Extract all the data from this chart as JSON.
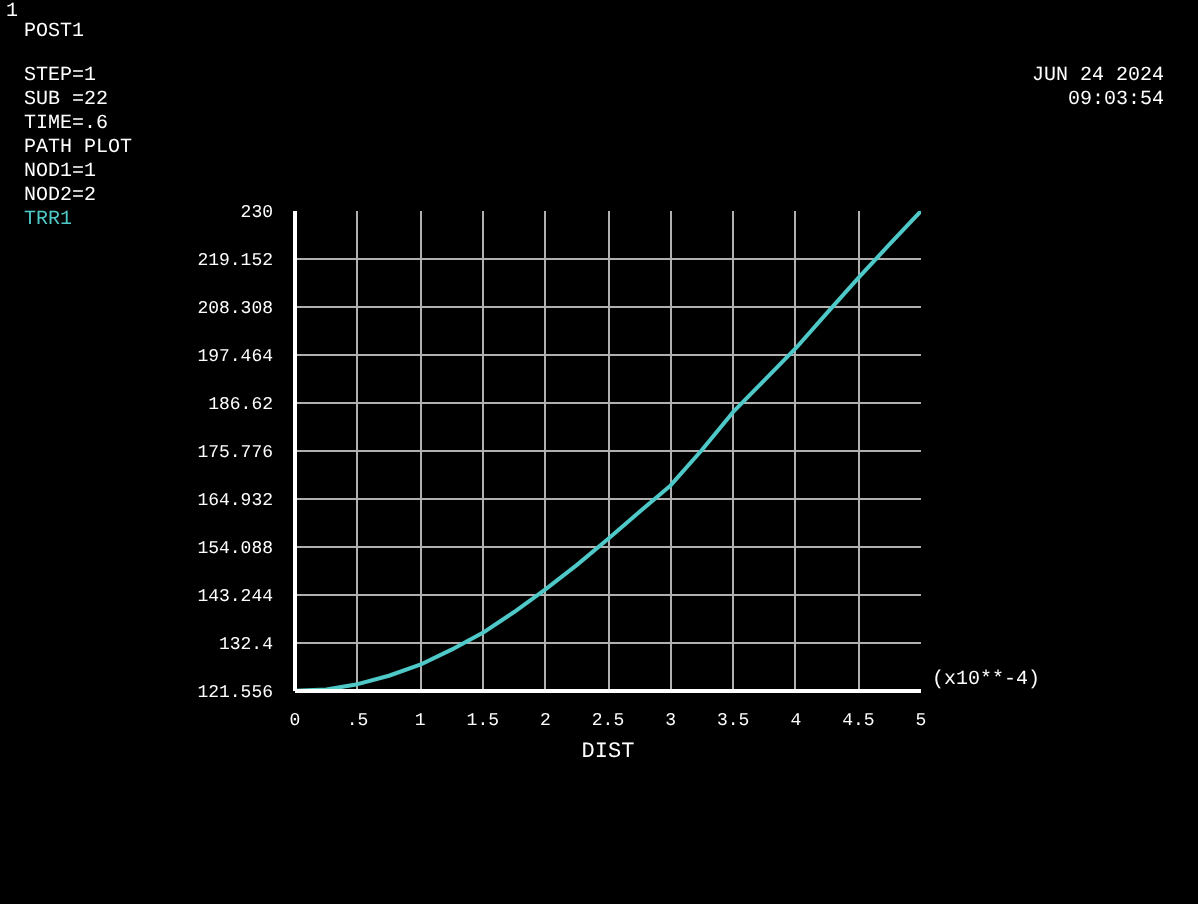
{
  "chart_data": {
    "type": "line",
    "xlabel": "DIST",
    "x": [
      0,
      0.25,
      0.5,
      0.75,
      1,
      1.25,
      1.5,
      1.75,
      2,
      2.25,
      2.5,
      2.75,
      3,
      3.25,
      3.5,
      3.75,
      4,
      4.25,
      4.5,
      4.75,
      5
    ],
    "series": [
      {
        "name": "TRR1",
        "color": "#4fc8c8",
        "values": [
          121.6,
          121.9,
          123.1,
          125.0,
          127.5,
          130.9,
          134.7,
          139.4,
          144.5,
          150.0,
          155.9,
          162.0,
          168.0,
          176.0,
          184.6,
          191.8,
          199.0,
          207.0,
          214.9,
          222.5,
          230.0
        ]
      }
    ],
    "xlim": [
      0,
      5
    ],
    "xticks": [
      0,
      {
        "value": 0.5,
        "label": ".5"
      },
      1,
      1.5,
      2,
      2.5,
      3,
      3.5,
      4,
      4.5,
      5
    ],
    "ylim": [
      121.556,
      230
    ],
    "yticks": [
      121.556,
      132.4,
      143.244,
      154.088,
      164.932,
      175.776,
      186.62,
      197.464,
      208.308,
      219.152,
      230
    ],
    "grid": true,
    "marker": "none",
    "line_style": "solid",
    "annotations": [
      "1",
      "POST1",
      "STEP=1",
      "SUB =22",
      "TIME=.6",
      "PATH PLOT",
      "NOD1=1",
      "NOD2=2",
      "JUN 24 2024",
      "09:03:54",
      "(x10**-4)"
    ]
  }
}
